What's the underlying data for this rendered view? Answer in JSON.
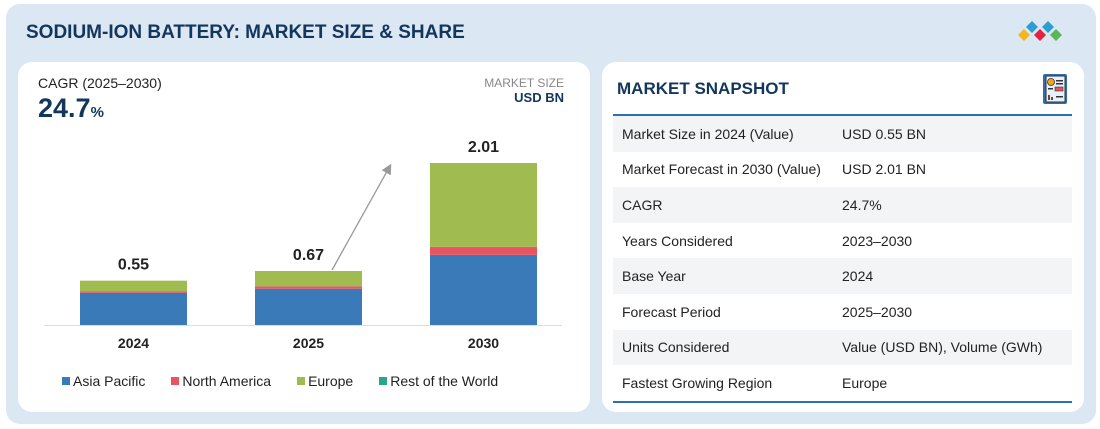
{
  "header": {
    "title": "SODIUM-ION BATTERY: MARKET SIZE & SHARE"
  },
  "left": {
    "cagr_label": "CAGR (2025–2030)",
    "cagr_value": "24.7",
    "cagr_unit": "%",
    "market_size_label": "MARKET SIZE",
    "unit_label": "USD BN"
  },
  "chart_data": {
    "type": "bar",
    "stacked": true,
    "categories": [
      "2024",
      "2025",
      "2030"
    ],
    "totals": [
      "0.55",
      "0.67",
      "2.01"
    ],
    "series": [
      {
        "name": "Asia Pacific",
        "color": "#3a7ab8",
        "values": [
          0.4,
          0.45,
          0.87
        ]
      },
      {
        "name": "North America",
        "color": "#e8555f",
        "values": [
          0.02,
          0.03,
          0.1
        ]
      },
      {
        "name": "Europe",
        "color": "#a0bc50",
        "values": [
          0.13,
          0.19,
          1.04
        ]
      },
      {
        "name": "Rest of the World",
        "color": "#2aa58a",
        "values": [
          0,
          0,
          0
        ]
      }
    ],
    "ylim": [
      0,
      2.01
    ],
    "grid": false,
    "legend": "bottom"
  },
  "snapshot": {
    "title": "MARKET SNAPSHOT",
    "rows": [
      {
        "k": "Market Size in 2024 (Value)",
        "v": "USD 0.55 BN"
      },
      {
        "k": "Market Forecast in 2030 (Value)",
        "v": "USD 2.01 BN"
      },
      {
        "k": "CAGR",
        "v": "24.7%"
      },
      {
        "k": "Years Considered",
        "v": "2023–2030"
      },
      {
        "k": "Base Year",
        "v": "2024"
      },
      {
        "k": "Forecast Period",
        "v": "2025–2030"
      },
      {
        "k": "Units Considered",
        "v": "Value (USD BN), Volume (GWh)"
      },
      {
        "k": "Fastest Growing Region",
        "v": "Europe"
      }
    ]
  }
}
